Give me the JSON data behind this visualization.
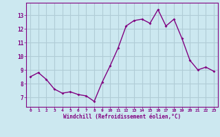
{
  "x": [
    0,
    1,
    2,
    3,
    4,
    5,
    6,
    7,
    8,
    9,
    10,
    11,
    12,
    13,
    14,
    15,
    16,
    17,
    18,
    19,
    20,
    21,
    22,
    23
  ],
  "y": [
    8.5,
    8.8,
    8.3,
    7.6,
    7.3,
    7.4,
    7.2,
    7.1,
    6.7,
    8.1,
    9.3,
    10.6,
    12.2,
    12.6,
    12.7,
    12.4,
    13.4,
    12.2,
    12.7,
    11.3,
    9.7,
    9.0,
    9.2,
    8.9
  ],
  "line_color": "#800080",
  "marker_color": "#800080",
  "bg_color": "#cce8f0",
  "grid_color": "#b0ccd6",
  "xlabel": "Windchill (Refroidissement éolien,°C)",
  "xlabel_color": "#800080",
  "tick_color": "#800080",
  "ylim": [
    6.3,
    13.9
  ],
  "yticks": [
    7,
    8,
    9,
    10,
    11,
    12,
    13
  ],
  "xlim": [
    -0.5,
    23.5
  ],
  "xticks": [
    0,
    1,
    2,
    3,
    4,
    5,
    6,
    7,
    8,
    9,
    10,
    11,
    12,
    13,
    14,
    15,
    16,
    17,
    18,
    19,
    20,
    21,
    22,
    23
  ]
}
